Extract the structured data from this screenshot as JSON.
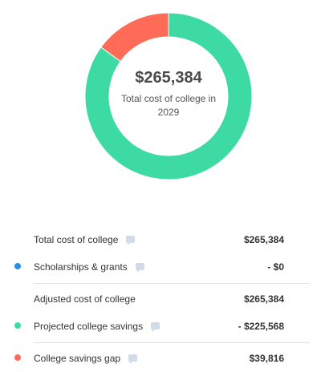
{
  "donut": {
    "amount": "$265,384",
    "caption": "Total cost of college in 2029",
    "segments": [
      {
        "name": "Projected college savings",
        "value": 225568,
        "color": "#3ddba3"
      },
      {
        "name": "College savings gap",
        "value": 39816,
        "color": "#ff6b57"
      }
    ]
  },
  "rows": [
    {
      "label": "Total cost of college",
      "value": "$265,384",
      "dot_color": ""
    },
    {
      "label": "Scholarships & grants",
      "value": "- $0",
      "dot_color": "#2f8fdd"
    },
    {
      "label": "Adjusted cost of college",
      "value": "$265,384",
      "dot_color": ""
    },
    {
      "label": "Projected college savings",
      "value": "- $225,568",
      "dot_color": "#3ddba3"
    },
    {
      "label": "College savings gap",
      "value": "$39,816",
      "dot_color": "#ff6b57"
    }
  ],
  "colors": {
    "savings": "#3ddba3",
    "gap": "#ff6b57",
    "scholarships": "#2f8fdd"
  }
}
